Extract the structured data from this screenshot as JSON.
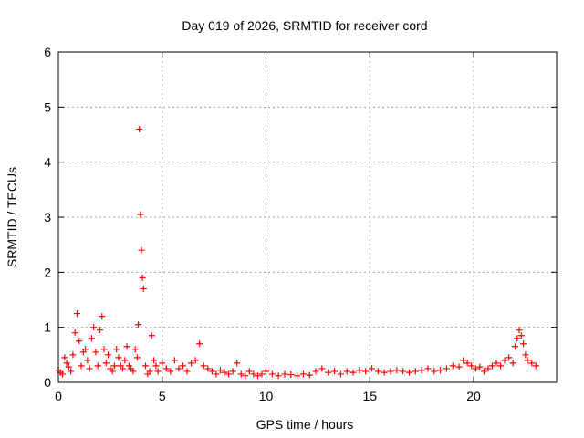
{
  "chart_data": {
    "type": "scatter",
    "title": "Day 019 of 2026, SRMTID for receiver cord",
    "xlabel": "GPS time / hours",
    "ylabel": "SRMTID / TECUs",
    "xlim": [
      0,
      24
    ],
    "ylim": [
      0,
      6
    ],
    "x_ticks": [
      0,
      5,
      10,
      15,
      20
    ],
    "y_ticks": [
      0,
      1,
      2,
      3,
      4,
      5,
      6
    ],
    "x_tick_labels": [
      "0",
      "5",
      "10",
      "15",
      "20"
    ],
    "y_tick_labels": [
      "0",
      "1",
      "2",
      "3",
      "4",
      "5",
      "6"
    ],
    "grid": true,
    "marker": "+",
    "series_color": "#ff0000",
    "series": [
      {
        "name": "SRMTID",
        "x": [
          0.0,
          0.1,
          0.2,
          0.3,
          0.4,
          0.5,
          0.6,
          0.7,
          0.8,
          0.9,
          1.0,
          1.1,
          1.2,
          1.3,
          1.4,
          1.5,
          1.6,
          1.7,
          1.8,
          1.9,
          2.0,
          2.1,
          2.2,
          2.3,
          2.4,
          2.5,
          2.6,
          2.7,
          2.8,
          2.9,
          3.0,
          3.1,
          3.2,
          3.3,
          3.4,
          3.5,
          3.6,
          3.7,
          3.8,
          3.85,
          3.9,
          3.95,
          4.0,
          4.05,
          4.1,
          4.2,
          4.3,
          4.4,
          4.5,
          4.6,
          4.7,
          4.8,
          5.0,
          5.2,
          5.4,
          5.6,
          5.8,
          6.0,
          6.2,
          6.4,
          6.6,
          6.8,
          7.0,
          7.2,
          7.4,
          7.6,
          7.8,
          8.0,
          8.2,
          8.4,
          8.6,
          8.8,
          9.0,
          9.2,
          9.4,
          9.6,
          9.8,
          10.0,
          10.3,
          10.6,
          10.9,
          11.2,
          11.5,
          11.8,
          12.1,
          12.4,
          12.7,
          13.0,
          13.3,
          13.6,
          13.9,
          14.2,
          14.5,
          14.8,
          15.1,
          15.4,
          15.7,
          16.0,
          16.3,
          16.6,
          16.9,
          17.2,
          17.5,
          17.8,
          18.1,
          18.4,
          18.7,
          19.0,
          19.3,
          19.5,
          19.7,
          19.9,
          20.1,
          20.3,
          20.5,
          20.7,
          20.9,
          21.1,
          21.3,
          21.5,
          21.7,
          21.9,
          22.0,
          22.1,
          22.2,
          22.3,
          22.4,
          22.5,
          22.6,
          22.8,
          23.0
        ],
        "y": [
          0.22,
          0.18,
          0.15,
          0.45,
          0.35,
          0.28,
          0.2,
          0.5,
          0.9,
          1.25,
          0.75,
          0.3,
          0.55,
          0.6,
          0.4,
          0.25,
          0.8,
          1.0,
          0.55,
          0.3,
          0.95,
          1.2,
          0.6,
          0.35,
          0.5,
          0.25,
          0.2,
          0.3,
          0.6,
          0.45,
          0.3,
          0.25,
          0.4,
          0.65,
          0.3,
          0.25,
          0.2,
          0.6,
          0.45,
          1.05,
          4.6,
          3.05,
          2.4,
          1.9,
          1.7,
          0.3,
          0.15,
          0.2,
          0.85,
          0.4,
          0.3,
          0.2,
          0.35,
          0.25,
          0.2,
          0.4,
          0.25,
          0.3,
          0.2,
          0.35,
          0.4,
          0.7,
          0.3,
          0.25,
          0.2,
          0.15,
          0.22,
          0.18,
          0.15,
          0.2,
          0.35,
          0.15,
          0.12,
          0.2,
          0.15,
          0.12,
          0.15,
          0.2,
          0.15,
          0.12,
          0.15,
          0.14,
          0.12,
          0.15,
          0.13,
          0.2,
          0.25,
          0.18,
          0.2,
          0.15,
          0.2,
          0.18,
          0.22,
          0.2,
          0.25,
          0.2,
          0.18,
          0.2,
          0.22,
          0.2,
          0.18,
          0.2,
          0.22,
          0.25,
          0.2,
          0.22,
          0.25,
          0.3,
          0.28,
          0.4,
          0.35,
          0.3,
          0.25,
          0.28,
          0.2,
          0.25,
          0.3,
          0.35,
          0.3,
          0.4,
          0.45,
          0.35,
          0.65,
          0.8,
          0.95,
          0.85,
          0.7,
          0.5,
          0.4,
          0.35,
          0.3
        ]
      }
    ]
  }
}
